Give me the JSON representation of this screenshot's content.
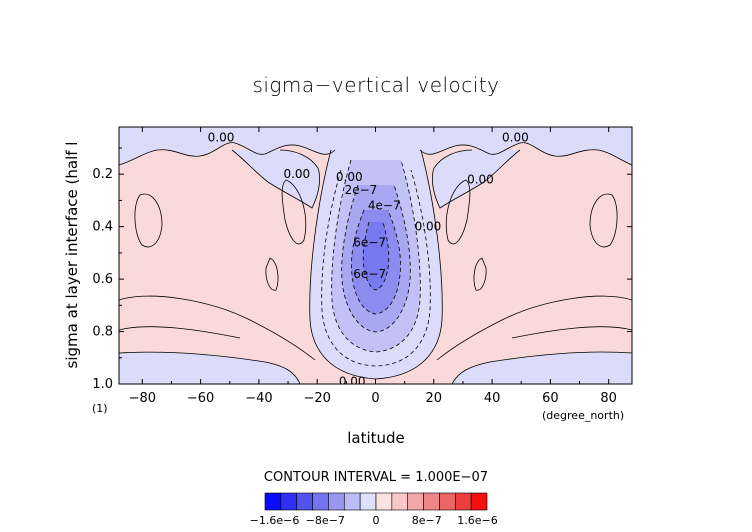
{
  "chart_data": {
    "type": "contour",
    "title": "sigma−vertical velocity",
    "xlabel": "latitude",
    "ylabel": "sigma at layer interface (half l",
    "x_unit": "(degree_north)",
    "y_unit": "(1)",
    "xlim": [
      -88,
      88
    ],
    "ylim": [
      1.0,
      0.02
    ],
    "x_ticks": [
      {
        "value": -80,
        "label": "−80"
      },
      {
        "value": -60,
        "label": "−60"
      },
      {
        "value": -40,
        "label": "−40"
      },
      {
        "value": -20,
        "label": "−20"
      },
      {
        "value": 0,
        "label": "0"
      },
      {
        "value": 20,
        "label": "20"
      },
      {
        "value": 40,
        "label": "40"
      },
      {
        "value": 60,
        "label": "60"
      },
      {
        "value": 80,
        "label": "80"
      }
    ],
    "y_ticks": [
      {
        "value": 0.2,
        "label": "0.2"
      },
      {
        "value": 0.4,
        "label": "0.4"
      },
      {
        "value": 0.6,
        "label": "0.6"
      },
      {
        "value": 0.8,
        "label": "0.8"
      },
      {
        "value": 1.0,
        "label": "1.0"
      }
    ],
    "contour_interval_text": "CONTOUR INTERVAL = 1.000E−07",
    "contour_labels": [
      {
        "text": "0.00",
        "lat": -53,
        "sigma": 0.06
      },
      {
        "text": "0.00",
        "lat": 48,
        "sigma": 0.06
      },
      {
        "text": "0.00",
        "lat": -27,
        "sigma": 0.2
      },
      {
        "text": "0.00",
        "lat": -9,
        "sigma": 0.21
      },
      {
        "text": "2e−7",
        "lat": -5,
        "sigma": 0.26
      },
      {
        "text": "4e−7",
        "lat": 3,
        "sigma": 0.32
      },
      {
        "text": "6e−7",
        "lat": -2,
        "sigma": 0.46
      },
      {
        "text": "6e−7",
        "lat": -2,
        "sigma": 0.58
      },
      {
        "text": "0.00",
        "lat": 18,
        "sigma": 0.4
      },
      {
        "text": "0.00",
        "lat": 36,
        "sigma": 0.22
      },
      {
        "text": "0.00",
        "lat": -8,
        "sigma": 0.99
      }
    ],
    "colorbar": {
      "colors": [
        "#0a0aff",
        "#2e2ef5",
        "#5252ef",
        "#7474f0",
        "#9898f2",
        "#bcbcf6",
        "#dddffb",
        "#fbe2e2",
        "#f8c8c8",
        "#f2a8a8",
        "#ee8888",
        "#ec6565",
        "#ee3f3f",
        "#f50f0f"
      ],
      "labels": [
        {
          "text": "−1.6e−6",
          "value": -1.6e-06
        },
        {
          "text": "−8e−7",
          "value": -8e-07
        },
        {
          "text": "0",
          "value": 0
        },
        {
          "text": "8e−7",
          "value": 8e-07
        },
        {
          "text": "1.6e−6",
          "value": 1.6e-06
        }
      ],
      "range": [
        -1.75e-06,
        1.75e-06
      ]
    },
    "fill_colors": {
      "pos1": "#f9d9d9",
      "neg1": "#dcdcfa",
      "neg2": "#c2c2f6",
      "neg3": "#a8a8f2",
      "neg4": "#8c8cf0",
      "neg5": "#7878ef"
    }
  }
}
